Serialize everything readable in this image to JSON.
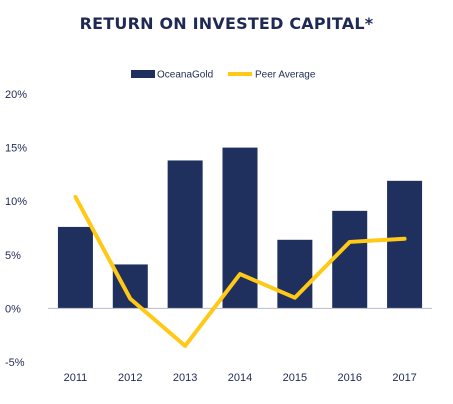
{
  "chart_data": {
    "type": "bar",
    "title": "RETURN ON INVESTED CAPITAL*",
    "xlabel": "",
    "ylabel": "",
    "categories": [
      "2011",
      "2012",
      "2013",
      "2014",
      "2015",
      "2016",
      "2017"
    ],
    "ylim": [
      -5,
      20
    ],
    "yticks": [
      -5,
      0,
      5,
      10,
      15,
      20
    ],
    "ytick_labels": [
      "-5%",
      "0%",
      "5%",
      "10%",
      "15%",
      "20%"
    ],
    "grid": false,
    "legend_position": "top-center",
    "series": [
      {
        "name": "OceanaGold",
        "type": "bar",
        "color": "#1f2f5e",
        "values": [
          7.6,
          4.1,
          13.8,
          15.0,
          6.4,
          9.1,
          11.9
        ]
      },
      {
        "name": "Peer Average",
        "type": "line",
        "color": "#ffc916",
        "values": [
          10.4,
          0.9,
          -3.5,
          3.2,
          1.0,
          6.2,
          6.5
        ]
      }
    ]
  }
}
